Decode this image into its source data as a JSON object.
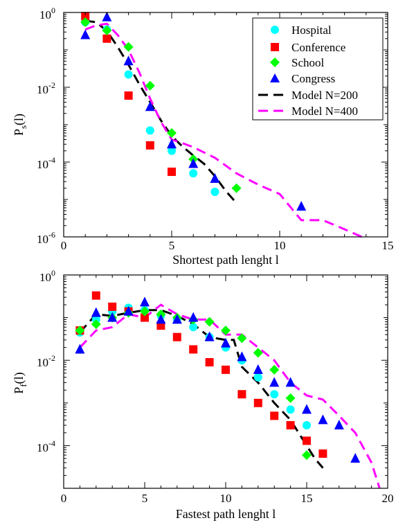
{
  "chart_data": [
    {
      "type": "scatter",
      "xlabel": "Shortest path lenght l",
      "ylabel": "P",
      "ylabel_sub": "s",
      "ylabel_suffix": "(l)",
      "xlim": [
        0,
        15
      ],
      "ylim": [
        1e-06,
        1
      ],
      "yscale": "log",
      "xticks": [
        0,
        5,
        10,
        15
      ],
      "yticks": [
        {
          "value": 1,
          "base": "10",
          "exp": "0"
        },
        {
          "value": 0.01,
          "base": "10",
          "exp": "-2"
        },
        {
          "value": 0.0001,
          "base": "10",
          "exp": "-4"
        },
        {
          "value": 1e-06,
          "base": "10",
          "exp": "-6"
        }
      ],
      "grid": false,
      "legend": "top-right",
      "series": [
        {
          "name": "Hospital",
          "marker": "circle",
          "color": "#00ffff",
          "x": [
            1,
            2,
            3,
            4,
            5,
            6,
            7
          ],
          "y": [
            0.55,
            0.35,
            0.022,
            0.0007,
            0.0002,
            5e-05,
            1.6e-05
          ]
        },
        {
          "name": "Conference",
          "marker": "square",
          "color": "#ff0000",
          "x": [
            1,
            2,
            3,
            4,
            5
          ],
          "y": [
            0.8,
            0.2,
            0.006,
            0.00028,
            5.5e-05
          ]
        },
        {
          "name": "School",
          "marker": "diamond",
          "color": "#00ff00",
          "x": [
            1,
            2,
            3,
            4,
            5,
            6,
            8
          ],
          "y": [
            0.55,
            0.33,
            0.12,
            0.011,
            0.0006,
            0.00012,
            2e-05
          ]
        },
        {
          "name": "Congress",
          "marker": "triangle",
          "color": "#0000ff",
          "x": [
            1,
            2,
            3,
            4,
            5,
            6,
            7,
            11
          ],
          "y": [
            0.25,
            0.75,
            0.05,
            0.003,
            0.0003,
            9e-05,
            3.6e-05,
            6.5e-06
          ]
        },
        {
          "name": "Model N=200",
          "marker": "line",
          "color": "#000000",
          "dash": "14,8",
          "x": [
            1,
            1.5,
            2,
            2.5,
            3,
            3.5,
            4,
            4.5,
            5,
            5.5,
            6,
            6.5,
            7,
            7.5,
            8
          ],
          "y": [
            0.6,
            0.55,
            0.32,
            0.12,
            0.04,
            0.012,
            0.004,
            0.0013,
            0.0005,
            0.00026,
            0.00015,
            9e-05,
            4.2e-05,
            1.7e-05,
            8e-06
          ]
        },
        {
          "name": "Model N=400",
          "marker": "line",
          "color": "#ff00ff",
          "dash": "14,8",
          "x": [
            1,
            1.5,
            2,
            2.5,
            3,
            3.5,
            4,
            4.5,
            5,
            5.5,
            6,
            7,
            8,
            9,
            10,
            11,
            12,
            13,
            13.8
          ],
          "y": [
            0.35,
            0.45,
            0.5,
            0.25,
            0.1,
            0.025,
            0.005,
            0.0012,
            0.0004,
            0.00032,
            0.00025,
            0.00013,
            5e-05,
            2.5e-05,
            1.4e-05,
            2.8e-06,
            2.8e-06,
            1.6e-06,
            1e-06
          ]
        }
      ]
    },
    {
      "type": "scatter",
      "xlabel": "Fastest path lenght l",
      "ylabel": "P",
      "ylabel_sub": "f",
      "ylabel_suffix": "(l)",
      "xlim": [
        0,
        20
      ],
      "ylim": [
        1e-05,
        1
      ],
      "yscale": "log",
      "xticks": [
        0,
        5,
        10,
        15,
        20
      ],
      "yticks": [
        {
          "value": 1,
          "base": "10",
          "exp": "0"
        },
        {
          "value": 0.01,
          "base": "10",
          "exp": "-2"
        },
        {
          "value": 0.0001,
          "base": "10",
          "exp": "-4"
        }
      ],
      "grid": false,
      "series": [
        {
          "name": "Hospital",
          "marker": "circle",
          "color": "#00ffff",
          "x": [
            1,
            2,
            3,
            4,
            5,
            6,
            7,
            8,
            9,
            10,
            11,
            12,
            13,
            14,
            15
          ],
          "y": [
            0.045,
            0.09,
            0.14,
            0.17,
            0.15,
            0.11,
            0.09,
            0.06,
            0.035,
            0.02,
            0.01,
            0.004,
            0.0016,
            0.0007,
            0.0003
          ]
        },
        {
          "name": "Conference",
          "marker": "square",
          "color": "#ff0000",
          "x": [
            1,
            2,
            3,
            4,
            5,
            6,
            7,
            8,
            9,
            10,
            11,
            12,
            13,
            14,
            15,
            16
          ],
          "y": [
            0.05,
            0.33,
            0.18,
            0.14,
            0.1,
            0.065,
            0.035,
            0.018,
            0.009,
            0.006,
            0.0016,
            0.001,
            0.0005,
            0.0003,
            0.00013,
            6.5e-05
          ]
        },
        {
          "name": "School",
          "marker": "diamond",
          "color": "#00ff00",
          "x": [
            1,
            2,
            3,
            4,
            5,
            6,
            7,
            8,
            9,
            10,
            11,
            12,
            13,
            14,
            15
          ],
          "y": [
            0.05,
            0.07,
            0.1,
            0.13,
            0.14,
            0.12,
            0.1,
            0.09,
            0.08,
            0.05,
            0.033,
            0.015,
            0.006,
            0.0013,
            6e-05
          ]
        },
        {
          "name": "Congress",
          "marker": "triangle",
          "color": "#0000ff",
          "x": [
            1,
            2,
            3,
            4,
            5,
            6,
            7,
            8,
            9,
            10,
            11,
            12,
            13,
            14,
            15,
            16,
            17,
            18
          ],
          "y": [
            0.018,
            0.13,
            0.1,
            0.14,
            0.23,
            0.09,
            0.09,
            0.1,
            0.035,
            0.025,
            0.012,
            0.006,
            0.003,
            0.003,
            0.0007,
            0.0004,
            0.0003,
            5e-05
          ]
        },
        {
          "name": "Model N=200",
          "marker": "line",
          "color": "#000000",
          "dash": "14,8",
          "x": [
            1,
            2,
            3,
            4,
            5,
            6,
            7,
            8,
            9,
            10,
            10.5,
            11,
            12,
            13,
            14,
            15,
            15.5,
            16
          ],
          "y": [
            0.045,
            0.12,
            0.11,
            0.13,
            0.15,
            0.15,
            0.11,
            0.07,
            0.035,
            0.03,
            0.03,
            0.007,
            0.003,
            0.001,
            0.0004,
            0.0001,
            5e-05,
            3e-05
          ]
        },
        {
          "name": "Model N=400",
          "marker": "line",
          "color": "#ff00ff",
          "dash": "14,8",
          "x": [
            1,
            2,
            3,
            4,
            5,
            6,
            7,
            8,
            9,
            10,
            11,
            12,
            13,
            14,
            15,
            16,
            17,
            18,
            19,
            19.5
          ],
          "y": [
            0.02,
            0.05,
            0.06,
            0.12,
            0.1,
            0.2,
            0.12,
            0.09,
            0.09,
            0.04,
            0.04,
            0.02,
            0.01,
            0.003,
            0.0015,
            0.0012,
            0.0005,
            0.0002,
            4e-05,
            1e-05
          ]
        }
      ]
    }
  ]
}
